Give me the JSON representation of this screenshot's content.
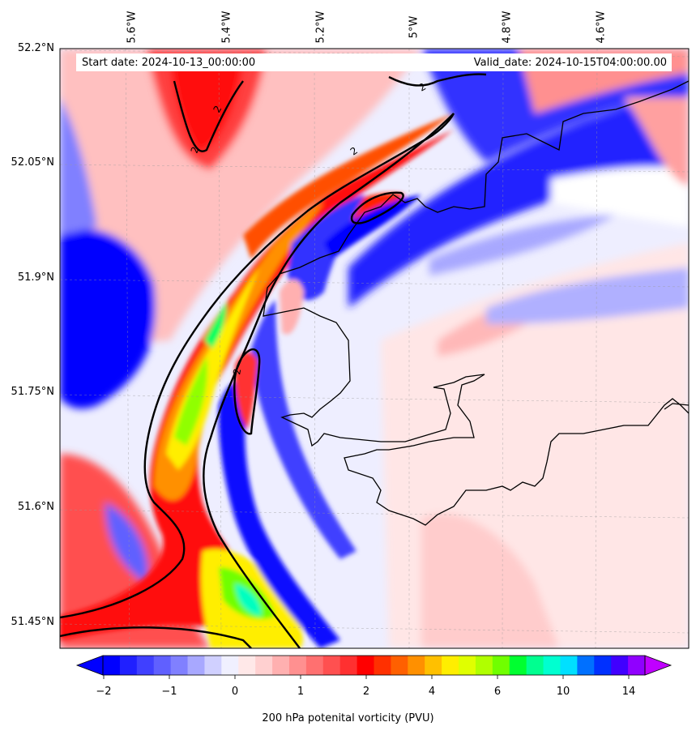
{
  "map": {
    "start_date": "Start date: 2024-10-13_00:00:00",
    "valid_date": "Valid_date: 2024-10-15T04:00:00.00",
    "longitude_labels": [
      "5.6°W",
      "5.4°W",
      "5.2°W",
      "5°W",
      "4.8°W",
      "4.6°W"
    ],
    "latitude_labels": [
      "52.2°N",
      "52.05°N",
      "51.9°N",
      "51.75°N",
      "51.6°N",
      "51.45°N"
    ],
    "contour_labels": [
      "2",
      "2",
      "2",
      "2",
      "2"
    ],
    "colorbar": {
      "ticks": [
        "−2",
        "−1",
        "0",
        "1",
        "2",
        "4",
        "6",
        "10",
        "14"
      ],
      "title": "200 hPa potenital vorticity (PVU)",
      "colors": [
        "#0000ff",
        "#2020ff",
        "#4040ff",
        "#6060ff",
        "#8080ff",
        "#a8a8ff",
        "#d0d0ff",
        "#f0f0ff",
        "#ffe8e8",
        "#ffd0d0",
        "#ffb0b0",
        "#ff9090",
        "#ff7070",
        "#ff5050",
        "#ff3030",
        "#ff0000",
        "#ff3000",
        "#ff6000",
        "#ff9000",
        "#ffc000",
        "#ffee00",
        "#e0ff00",
        "#b0ff00",
        "#70ff00",
        "#00ff30",
        "#00ff90",
        "#00ffd0",
        "#00e0ff",
        "#0070ff",
        "#0030ff",
        "#4000ff",
        "#9000ff"
      ]
    }
  }
}
